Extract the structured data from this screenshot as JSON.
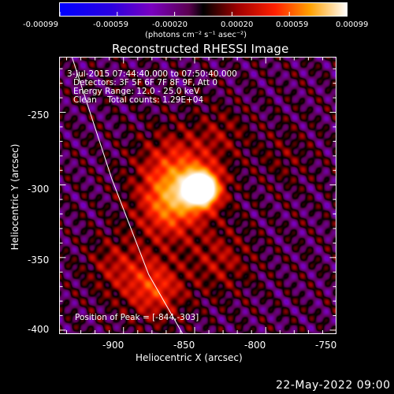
{
  "colorbar": {
    "ticks": [
      "-0.00099",
      "-0.00059",
      "-0.00020",
      "0.00020",
      "0.00059",
      "0.00099"
    ],
    "unit_label": "(photons cm⁻² s⁻¹ asec⁻²)",
    "range": [
      -0.00099,
      0.00099
    ]
  },
  "chart_data": {
    "type": "heatmap",
    "title": "Reconstructed RHESSI Image",
    "xlabel": "Heliocentric X (arcsec)",
    "ylabel": "Heliocentric Y (arcsec)",
    "xlim": [
      -945,
      -750
    ],
    "ylim": [
      -403,
      -212
    ],
    "xticks": [
      -900,
      -850,
      -800,
      -750
    ],
    "yticks": [
      -250,
      -300,
      -350,
      -400
    ],
    "peak": {
      "x": -844,
      "y": -303
    },
    "sources": [
      {
        "x": -844,
        "y": -303,
        "intensity": 1.0,
        "sigma": 9
      },
      {
        "x": -862,
        "y": -292,
        "intensity": 0.55,
        "sigma": 20
      },
      {
        "x": -868,
        "y": -318,
        "intensity": 0.45,
        "sigma": 16
      },
      {
        "x": -878,
        "y": -372,
        "intensity": 0.5,
        "sigma": 15
      },
      {
        "x": -905,
        "y": -355,
        "intensity": 0.3,
        "sigma": 15
      },
      {
        "x": -832,
        "y": -352,
        "intensity": 0.3,
        "sigma": 16
      },
      {
        "x": -830,
        "y": -263,
        "intensity": 0.2,
        "sigma": 13
      },
      {
        "x": -788,
        "y": -280,
        "intensity": 0.15,
        "sigma": 14
      }
    ],
    "limb_line": [
      [
        -936,
        -212
      ],
      [
        -908,
        -296
      ],
      [
        -882,
        -362
      ],
      [
        -858,
        -403
      ]
    ]
  },
  "overlay": {
    "time_range": "3-Jul-2015 07:44:40.000 to 07:50:40.000",
    "detectors": "Detectors: 3F 5F 6F 7F 8F 9F, Att 0",
    "energy_range": "Energy Range: 12.0 - 25.0 keV",
    "clean_counts": "Clean    Total counts: 1.29E+04",
    "peak_position": "Position of Peak = [-844,-303]"
  },
  "footer_date": "22-May-2022 09:00"
}
